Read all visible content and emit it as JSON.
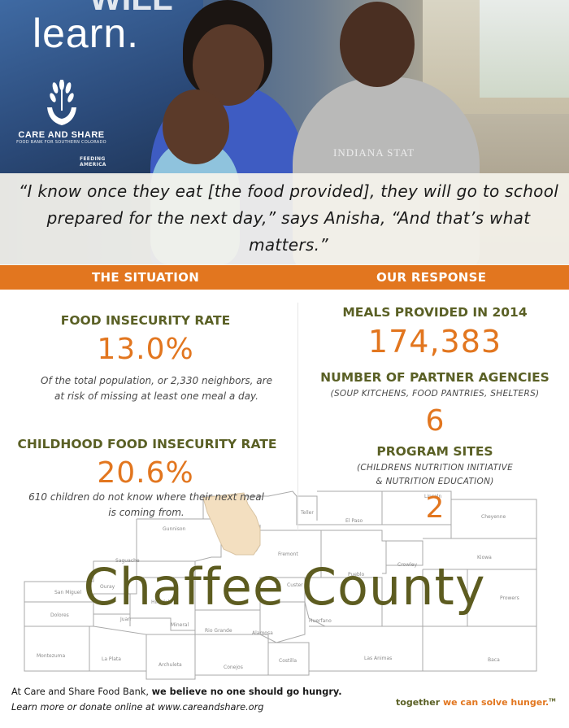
{
  "hero": {
    "headline_fragment": "learn.",
    "headline_top_fragment": "WILL",
    "shirt_text": "INDIANA STAT",
    "logo_name": "CARE AND SHARE",
    "logo_sub": "FOOD BANK FOR SOUTHERN COLORADO",
    "logo_partner": "FEEDING AMERICA",
    "quote": "“I know once they eat [the food provided], they will go to school prepared for the next day,” says Anisha, “And that’s what matters.”"
  },
  "sections": {
    "situation_label": "THE SITUATION",
    "response_label": "OUR RESPONSE"
  },
  "situation": {
    "food_insecurity": {
      "heading": "FOOD INSECURITY RATE",
      "value": "13.0%",
      "note": "Of the total population, or 2,330 neighbors, are at risk of missing at least one meal a day."
    },
    "child_insecurity": {
      "heading": "CHILDHOOD FOOD INSECURITY RATE",
      "value": "20.6%",
      "note": "610 children do not know where their next meal is coming from."
    }
  },
  "response": {
    "meals": {
      "heading": "MEALS PROVIDED IN 2014",
      "value": "174,383"
    },
    "agencies": {
      "heading": "NUMBER OF PARTNER AGENCIES",
      "sub": "(SOUP KITCHENS, FOOD PANTRIES, SHELTERS)",
      "value": "6"
    },
    "sites": {
      "heading": "PROGRAM SITES",
      "sub_line1": "(CHILDRENS NUTRITION INITIATIVE",
      "sub_line2": "& NUTRITION EDUCATION)",
      "value": "2"
    }
  },
  "map": {
    "county_title": "Chaffee County",
    "highlight_color": "#f3dfc0",
    "counties": [
      "Teller",
      "El Paso",
      "Lincoln",
      "Cheyenne",
      "Gunnison",
      "Fremont",
      "Kiowa",
      "Crowley",
      "Custer",
      "Pueblo",
      "San Miguel",
      "Saguache",
      "Ouray",
      "Hinsdale",
      "Dolores",
      "Juan",
      "Mineral",
      "Rio Grande",
      "Alamosa",
      "Huerfano",
      "Prowers",
      "Montezuma",
      "La Plata",
      "Archuleta",
      "Conejos",
      "Costilla",
      "Las Animas",
      "Baca"
    ]
  },
  "footer": {
    "line1_prefix": "At Care and Share Food Bank, ",
    "line1_bold": "we believe no one should go hungry.",
    "line2": "Learn more or donate online at www.careandshare.org",
    "tagline_a": "together ",
    "tagline_b": "we can solve hunger.",
    "tagline_tm": "TM"
  },
  "colors": {
    "orange": "#e2761f",
    "olive": "#5a6025",
    "county_title": "#5d5c20"
  }
}
